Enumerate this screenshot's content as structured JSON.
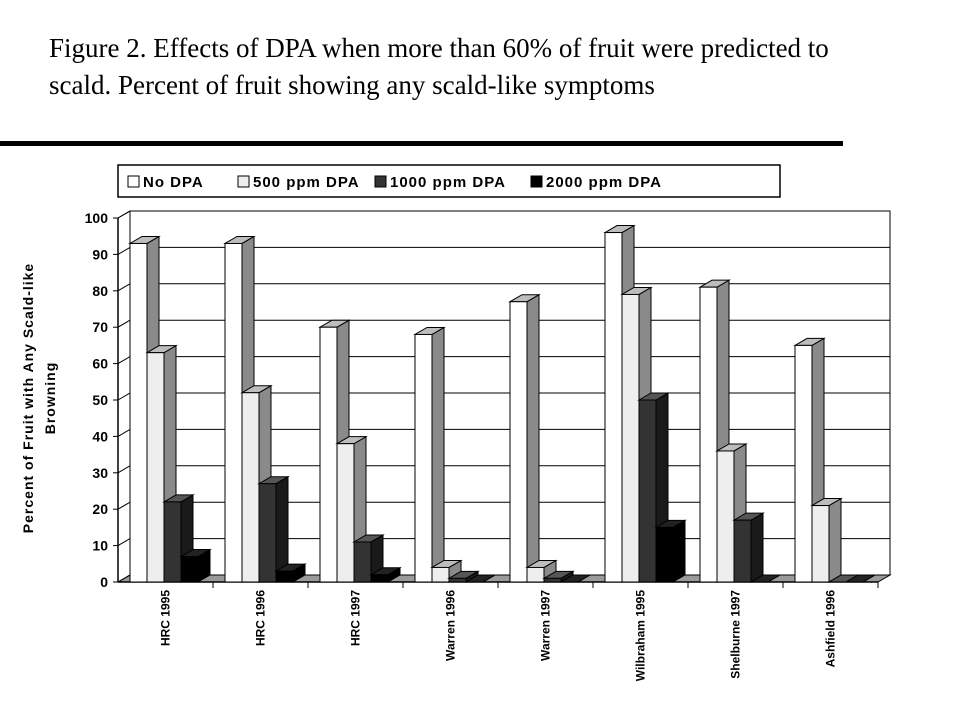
{
  "figure": {
    "title": "Figure 2.  Effects of  DPA when more than 60% of fruit were predicted to scald. Percent of fruit showing any scald-like symptoms"
  },
  "chart_data": {
    "type": "bar",
    "style": "3d-clustered-column",
    "title": "",
    "xlabel": "",
    "ylabel": "Percent of Fruit with Any Scald-like Browning",
    "ylabel_lines": [
      "Percent of Fruit with Any Scald-like",
      "Browning"
    ],
    "ylim": [
      0,
      100
    ],
    "yticks": [
      "0",
      "10",
      "20",
      "30",
      "40",
      "50",
      "60",
      "70",
      "80",
      "90",
      "100"
    ],
    "grid": true,
    "legend_position": "top",
    "categories": [
      "HRC 1995",
      "HRC 1996",
      "HRC 1997",
      "Warren 1996",
      "Warren 1997",
      "Wilbraham 1995",
      "Shelburne 1997",
      "Ashfield 1996"
    ],
    "series": [
      {
        "name": "No DPA",
        "color": "#ffffff",
        "values": [
          93,
          93,
          70,
          68,
          77,
          96,
          81,
          65
        ]
      },
      {
        "name": "500 ppm DPA",
        "color": "#eeeeee",
        "values": [
          63,
          52,
          38,
          4,
          4,
          79,
          36,
          21
        ]
      },
      {
        "name": "1000 ppm DPA",
        "color": "#333333",
        "values": [
          22,
          27,
          11,
          1,
          1,
          50,
          17,
          0
        ]
      },
      {
        "name": "2000 ppm DPA",
        "color": "#000000",
        "values": [
          7,
          3,
          2,
          0,
          0,
          15,
          0,
          0
        ]
      }
    ]
  }
}
